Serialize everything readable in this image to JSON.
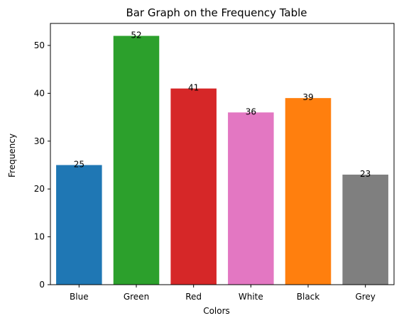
{
  "chart_data": {
    "type": "bar",
    "title": "Bar Graph on the Frequency Table",
    "xlabel": "Colors",
    "ylabel": "Frequency",
    "categories": [
      "Blue",
      "Green",
      "Red",
      "White",
      "Black",
      "Grey"
    ],
    "values": [
      25,
      52,
      41,
      36,
      39,
      23
    ],
    "data_labels": [
      "25",
      "52",
      "41",
      "36",
      "39",
      "23"
    ],
    "colors": [
      "#1f77b4",
      "#2ca02c",
      "#d62728",
      "#e377c2",
      "#ff7f0e",
      "#7f7f7f"
    ],
    "ylim": [
      0,
      54.6
    ],
    "yticks": [
      0,
      10,
      20,
      30,
      40,
      50
    ],
    "ytick_labels": [
      "0",
      "10",
      "20",
      "30",
      "40",
      "50"
    ],
    "grid": false,
    "legend": "none"
  }
}
